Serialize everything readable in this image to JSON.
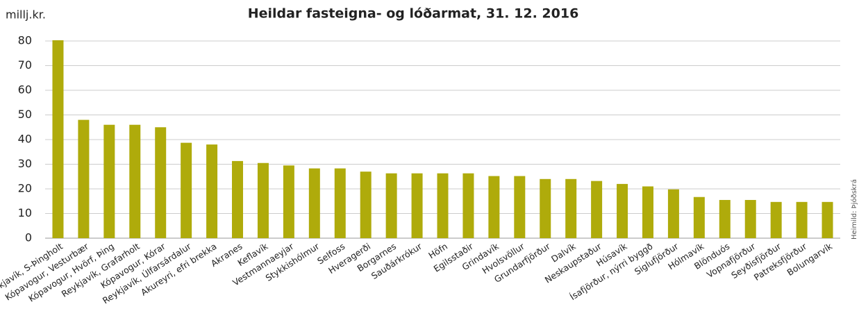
{
  "chart_data": {
    "type": "bar",
    "title": "Heildar fasteigna- og lóðarmat, 31. 12.  2016",
    "y_label": "millj.kr.",
    "source": "Heimild: Þjóðskrá",
    "categories": [
      "Reykjavík, S-Þingholt",
      "Kópavogur, Vesturbær",
      "Kópavogur, Hvörf, Þing",
      "Reykjavík, Grafarholt",
      "Kópavogur, Kórar",
      "Reykjavík, Úlfarsárdalur",
      "Akureyri, efri brekka",
      "Akranes",
      "Keflavík",
      "Vestmannaeyjar",
      "Stykkishólmur",
      "Selfoss",
      "Hveragerði",
      "Borgarnes",
      "Sauðárkrókur",
      "Höfn",
      "Egilsstaðir",
      "Grindavík",
      "Hvolsvöllur",
      "Grundarfjörður",
      "Dalvík",
      "Neskaupstaður",
      "Húsavík",
      "Ísafjörður, nýrri byggð",
      "Siglufjörður",
      "Hólmavík",
      "Blönduós",
      "Vopnafjörður",
      "Seyðisfjörður",
      "Patreksfjörður",
      "Bolungarvík"
    ],
    "values": [
      80.3,
      48,
      46,
      46,
      45,
      38.7,
      38,
      31.3,
      30.5,
      29.5,
      28.3,
      28.3,
      27,
      26.3,
      26.3,
      26.3,
      26.3,
      25.2,
      25.2,
      24,
      24,
      23.2,
      22,
      21,
      19.8,
      16.7,
      15.5,
      15.5,
      14.7,
      14.7,
      14.7
    ],
    "color": "#afab0b",
    "ylim": [
      0,
      80
    ],
    "yticks": [
      0,
      10,
      20,
      30,
      40,
      50,
      60,
      70,
      80
    ],
    "grid": true
  }
}
